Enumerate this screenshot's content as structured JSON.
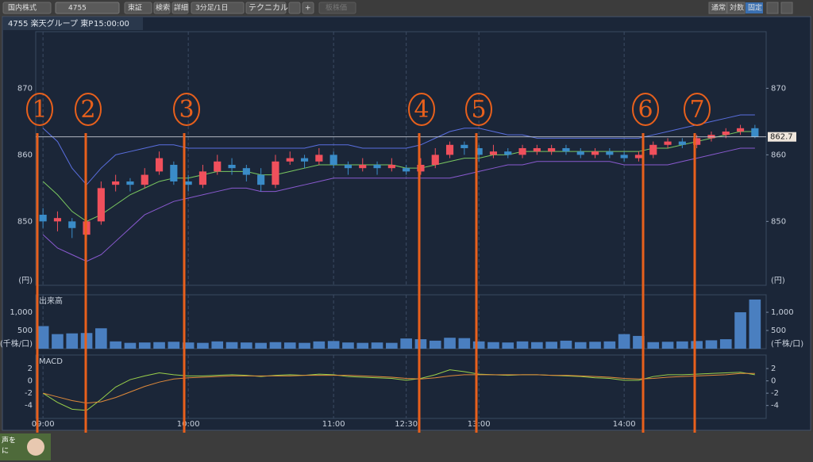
{
  "toolbar": {
    "market": "国内株式",
    "search_code": "4755",
    "exchange": "東証",
    "search": "検索",
    "detail": "詳細",
    "interval": "3分足/1日",
    "technical": "テクニカル",
    "add": "+",
    "ghost_button": "板株価",
    "scale_normal": "通常",
    "scale_log": "対数",
    "scale_fixed": "固定"
  },
  "header": {
    "symbol": "4755 楽天グループ 東P",
    "time": "15:00:00"
  },
  "footer": {
    "lines": [
      "声を",
      "に"
    ]
  },
  "annotations": [
    "1",
    "2",
    "3",
    "4",
    "5",
    "6",
    "7"
  ],
  "chart_data": [
    {
      "type": "candlestick",
      "unit_label": "(円)",
      "up_color": "#f0505c",
      "down_color": "#3a8cc8",
      "grid": true,
      "xlim": [
        -0.5,
        49.5
      ],
      "xticks": [
        {
          "value": 0,
          "label": "09:00"
        },
        {
          "value": 10,
          "label": "10:00"
        },
        {
          "value": 20,
          "label": "11:00"
        },
        {
          "value": 25,
          "label": "12:30"
        },
        {
          "value": 30,
          "label": "13:00"
        },
        {
          "value": 40,
          "label": "14:00"
        }
      ],
      "ylim": [
        840.4,
        878.5
      ],
      "yticks": [
        850,
        860,
        870
      ],
      "open": [
        851,
        850,
        850,
        848,
        850,
        855.5,
        856,
        855.5,
        857.5,
        858.5,
        856,
        855.5,
        857.5,
        858.5,
        858,
        857,
        855.5,
        859,
        859.5,
        859,
        860,
        858.5,
        858,
        858.5,
        858,
        858,
        857.5,
        858.5,
        860,
        861.5,
        861,
        860,
        860.5,
        860,
        860.5,
        860.5,
        861,
        860.5,
        860,
        860.5,
        860,
        859.5,
        860,
        861.5,
        862,
        861.5,
        862.5,
        863,
        863.5,
        864
      ],
      "high": [
        852,
        851.5,
        850.5,
        851,
        856,
        857,
        856.5,
        858,
        860.5,
        859,
        857,
        858.5,
        860,
        859.5,
        858.5,
        858,
        860,
        860.5,
        860,
        861,
        860.5,
        859,
        859.5,
        859,
        859.5,
        858.5,
        859.5,
        861,
        862,
        862,
        861.5,
        861.5,
        861,
        861.5,
        861.5,
        861.5,
        861.5,
        861,
        861,
        861,
        860.5,
        860.5,
        862,
        862.5,
        862.5,
        863,
        863.5,
        864,
        864.5,
        864.5
      ],
      "low": [
        849,
        848.5,
        847.5,
        847,
        849.5,
        854.5,
        854.5,
        855,
        857,
        855.5,
        854.5,
        855,
        857,
        857,
        856,
        854.5,
        855,
        858.5,
        858,
        858.5,
        858,
        857,
        857.5,
        857,
        857.5,
        857,
        857,
        858,
        859.5,
        860,
        859,
        859.5,
        859.5,
        859.5,
        860,
        860,
        860,
        859.5,
        859.5,
        859.5,
        859,
        859,
        859.5,
        861,
        861,
        861,
        862,
        862.5,
        863,
        862.5
      ],
      "close": [
        850,
        850.5,
        849,
        850,
        855,
        856,
        855.5,
        857,
        859.5,
        856,
        855.5,
        857.5,
        859,
        858,
        857,
        855.5,
        859,
        859.5,
        859,
        860,
        858.5,
        858,
        858.5,
        858,
        858.5,
        857.5,
        858.5,
        860,
        861.5,
        861,
        860,
        860.5,
        860,
        861,
        861,
        861,
        860.5,
        860,
        860.5,
        860,
        859.5,
        860,
        861.5,
        862,
        861.5,
        862.5,
        863,
        863.5,
        864,
        862.7
      ],
      "overlays": [
        {
          "color": "#5a6fe0",
          "values": [
            864,
            862,
            858,
            855.5,
            858,
            860,
            860.5,
            861,
            861.5,
            861.5,
            861,
            861,
            861,
            861,
            861,
            861,
            861,
            861,
            861,
            861.5,
            861.5,
            861.5,
            861,
            861,
            861,
            861,
            861.5,
            862.5,
            863.5,
            864,
            864,
            863.5,
            863,
            863,
            862.5,
            862.5,
            862.5,
            862.5,
            862.5,
            862.5,
            862.5,
            862.5,
            863,
            863.5,
            864,
            864.5,
            865,
            865.5,
            866,
            866
          ]
        },
        {
          "color": "#8a5ad0",
          "values": [
            848,
            846,
            845,
            844,
            845,
            847,
            849,
            851,
            852,
            853,
            853.5,
            854,
            854.5,
            855,
            855,
            854.5,
            854.5,
            855,
            855.5,
            856,
            856.5,
            856.5,
            856.5,
            856.5,
            856.5,
            856.5,
            856.5,
            856.5,
            856.5,
            857,
            857.5,
            858,
            858.5,
            858.5,
            859,
            859,
            859,
            859,
            859,
            859,
            858.5,
            858.5,
            858.5,
            858.5,
            859,
            859.5,
            860,
            860.5,
            861,
            861
          ]
        },
        {
          "color": "#7ac860",
          "values": [
            856,
            854,
            851.5,
            850,
            851,
            852.5,
            854,
            855,
            856,
            856.5,
            856.5,
            857,
            857.5,
            857.5,
            857.5,
            857,
            857,
            857.5,
            858,
            858.5,
            858.5,
            858.5,
            858.5,
            858.5,
            858.5,
            858,
            858,
            858.5,
            859,
            859.5,
            859.5,
            860,
            860,
            860.5,
            860.5,
            860.5,
            860.5,
            860.5,
            860.5,
            860.5,
            860.5,
            860.5,
            861,
            861,
            861.5,
            862,
            862.5,
            863,
            863.5,
            863.5
          ]
        }
      ]
    },
    {
      "type": "bar",
      "title": "出来高",
      "unit_label": "(千株/口)",
      "color": "#4a7fc0",
      "ylim": [
        0,
        1480
      ],
      "yticks": [
        500,
        {
          "value": 1000,
          "label": "1,000"
        }
      ],
      "values": [
        620,
        400,
        420,
        430,
        560,
        200,
        160,
        170,
        180,
        190,
        170,
        160,
        200,
        180,
        170,
        160,
        180,
        170,
        160,
        200,
        210,
        170,
        160,
        170,
        160,
        280,
        260,
        220,
        300,
        290,
        200,
        180,
        170,
        200,
        180,
        190,
        220,
        180,
        190,
        200,
        400,
        350,
        180,
        190,
        200,
        210,
        230,
        260,
        1000,
        1350
      ]
    },
    {
      "type": "line",
      "title": "MACD",
      "ylim": [
        -6.1,
        4.2
      ],
      "yticks": [
        -4,
        -2,
        0,
        2
      ],
      "series": [
        {
          "color": "#9ad04a",
          "values": [
            -2,
            -3.5,
            -4.6,
            -4.8,
            -3,
            -1,
            0.2,
            0.8,
            1.3,
            1,
            0.8,
            0.8,
            0.9,
            1,
            0.9,
            0.7,
            0.9,
            1,
            0.9,
            1.1,
            1,
            0.7,
            0.6,
            0.5,
            0.4,
            0.1,
            0.4,
            1,
            1.8,
            1.5,
            1.1,
            1,
            0.9,
            1,
            1,
            0.9,
            0.8,
            0.7,
            0.5,
            0.4,
            0.1,
            0.1,
            0.7,
            1,
            1,
            1.1,
            1.2,
            1.3,
            1.4,
            1
          ]
        },
        {
          "color": "#e08a3a",
          "values": [
            -2,
            -2.6,
            -3.2,
            -3.6,
            -3.4,
            -2.7,
            -1.8,
            -0.9,
            -0.2,
            0.3,
            0.5,
            0.6,
            0.7,
            0.8,
            0.8,
            0.8,
            0.8,
            0.8,
            0.9,
            0.9,
            0.9,
            0.9,
            0.8,
            0.7,
            0.6,
            0.4,
            0.3,
            0.5,
            0.8,
            1,
            1,
            1,
            1,
            1,
            1,
            0.9,
            0.9,
            0.8,
            0.7,
            0.6,
            0.4,
            0.3,
            0.4,
            0.6,
            0.7,
            0.8,
            0.9,
            1,
            1.2,
            1.2
          ]
        }
      ]
    }
  ]
}
